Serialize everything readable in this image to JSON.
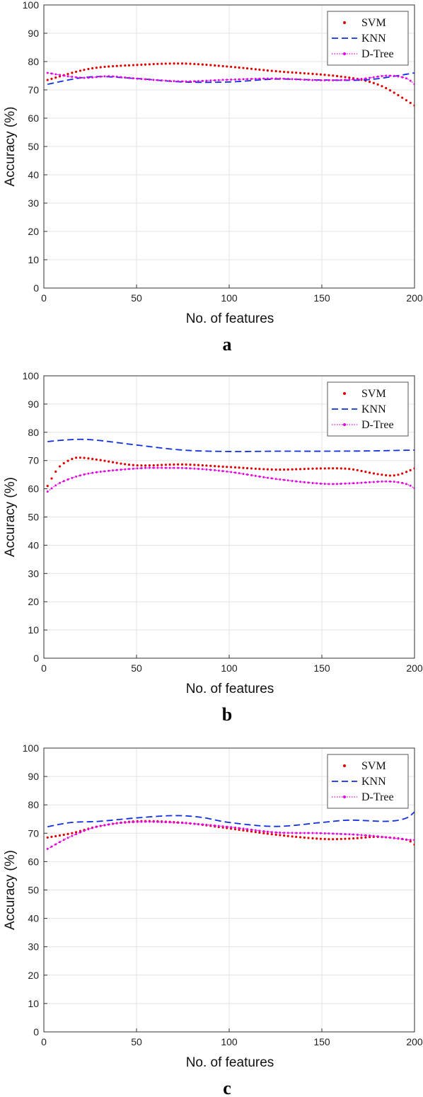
{
  "chart_data": [
    {
      "type": "line",
      "panel_label": "a",
      "xlabel": "No. of features",
      "ylabel": "Accuracy (%)",
      "xlim": [
        0,
        200
      ],
      "ylim": [
        0,
        100
      ],
      "xticks": [
        0,
        50,
        100,
        150,
        200
      ],
      "yticks": [
        0,
        10,
        20,
        30,
        40,
        50,
        60,
        70,
        80,
        90,
        100
      ],
      "grid": true,
      "legend_position": "top-right",
      "series": [
        {
          "name": "SVM",
          "color": "#e00000",
          "style": "dotted-markers",
          "x": [
            2,
            25,
            50,
            75,
            100,
            125,
            150,
            165,
            175,
            185,
            200
          ],
          "y": [
            73.5,
            77.5,
            78.8,
            79.3,
            78.2,
            76.6,
            75.4,
            74.3,
            73.0,
            70.5,
            64.5
          ]
        },
        {
          "name": "KNN",
          "color": "#1030e0",
          "style": "dashed",
          "x": [
            2,
            25,
            50,
            75,
            100,
            125,
            150,
            175,
            200
          ],
          "y": [
            72.0,
            74.6,
            74.0,
            72.8,
            72.8,
            73.8,
            73.5,
            73.6,
            76.0
          ]
        },
        {
          "name": "D-Tree",
          "color": "#e000e0",
          "style": "dotted-line-markers",
          "x": [
            2,
            20,
            35,
            50,
            75,
            100,
            125,
            150,
            170,
            185,
            195,
            200
          ],
          "y": [
            76.0,
            74.3,
            74.8,
            74.0,
            73.0,
            73.6,
            74.0,
            73.4,
            73.8,
            75.0,
            74.2,
            72.0
          ]
        }
      ]
    },
    {
      "type": "line",
      "panel_label": "b",
      "xlabel": "No. of features",
      "ylabel": "Accuracy (%)",
      "xlim": [
        0,
        200
      ],
      "ylim": [
        0,
        100
      ],
      "xticks": [
        0,
        50,
        100,
        150,
        200
      ],
      "yticks": [
        0,
        10,
        20,
        30,
        40,
        50,
        60,
        70,
        80,
        90,
        100
      ],
      "grid": true,
      "legend_position": "top-right",
      "series": [
        {
          "name": "SVM",
          "color": "#e00000",
          "style": "dotted-markers",
          "x": [
            2,
            8,
            15,
            20,
            30,
            50,
            75,
            100,
            125,
            150,
            165,
            180,
            190,
            200
          ],
          "y": [
            61.0,
            67.5,
            70.5,
            71.0,
            70.2,
            68.3,
            68.6,
            67.7,
            66.8,
            67.2,
            67.0,
            65.2,
            64.8,
            67.2
          ]
        },
        {
          "name": "KNN",
          "color": "#1030e0",
          "style": "dashed",
          "x": [
            2,
            10,
            20,
            30,
            50,
            75,
            100,
            125,
            150,
            175,
            200
          ],
          "y": [
            76.7,
            77.2,
            77.5,
            77.1,
            75.5,
            73.7,
            73.2,
            73.3,
            73.3,
            73.4,
            73.7
          ]
        },
        {
          "name": "D-Tree",
          "color": "#e000e0",
          "style": "dotted-line-markers",
          "x": [
            2,
            10,
            25,
            50,
            65,
            80,
            100,
            125,
            150,
            165,
            185,
            195,
            200
          ],
          "y": [
            59.0,
            62.5,
            65.5,
            67.2,
            67.4,
            67.2,
            66.0,
            63.5,
            61.8,
            61.9,
            62.6,
            61.8,
            60.2
          ]
        }
      ]
    },
    {
      "type": "line",
      "panel_label": "c",
      "xlabel": "No. of features",
      "ylabel": "Accuracy (%)",
      "xlim": [
        0,
        200
      ],
      "ylim": [
        0,
        100
      ],
      "xticks": [
        0,
        50,
        100,
        150,
        200
      ],
      "yticks": [
        0,
        10,
        20,
        30,
        40,
        50,
        60,
        70,
        80,
        90,
        100
      ],
      "grid": true,
      "legend_position": "top-right",
      "series": [
        {
          "name": "SVM",
          "color": "#e00000",
          "style": "dotted-markers",
          "x": [
            2,
            15,
            30,
            50,
            75,
            100,
            125,
            150,
            165,
            180,
            195,
            200
          ],
          "y": [
            68.5,
            70.0,
            72.5,
            74.2,
            73.7,
            71.7,
            69.5,
            68.0,
            68.1,
            68.7,
            67.8,
            66.0
          ]
        },
        {
          "name": "KNN",
          "color": "#1030e0",
          "style": "dashed",
          "x": [
            2,
            15,
            30,
            50,
            70,
            85,
            100,
            125,
            150,
            165,
            185,
            195,
            200
          ],
          "y": [
            72.3,
            73.8,
            74.2,
            75.4,
            76.2,
            75.6,
            73.8,
            72.4,
            73.8,
            74.6,
            74.2,
            75.2,
            77.5
          ]
        },
        {
          "name": "D-Tree",
          "color": "#e000e0",
          "style": "dotted-line-markers",
          "x": [
            2,
            15,
            30,
            50,
            75,
            100,
            125,
            150,
            175,
            195,
            200
          ],
          "y": [
            64.5,
            69.0,
            72.5,
            74.0,
            73.6,
            72.2,
            70.3,
            70.0,
            69.2,
            67.8,
            67.6
          ]
        }
      ]
    }
  ]
}
